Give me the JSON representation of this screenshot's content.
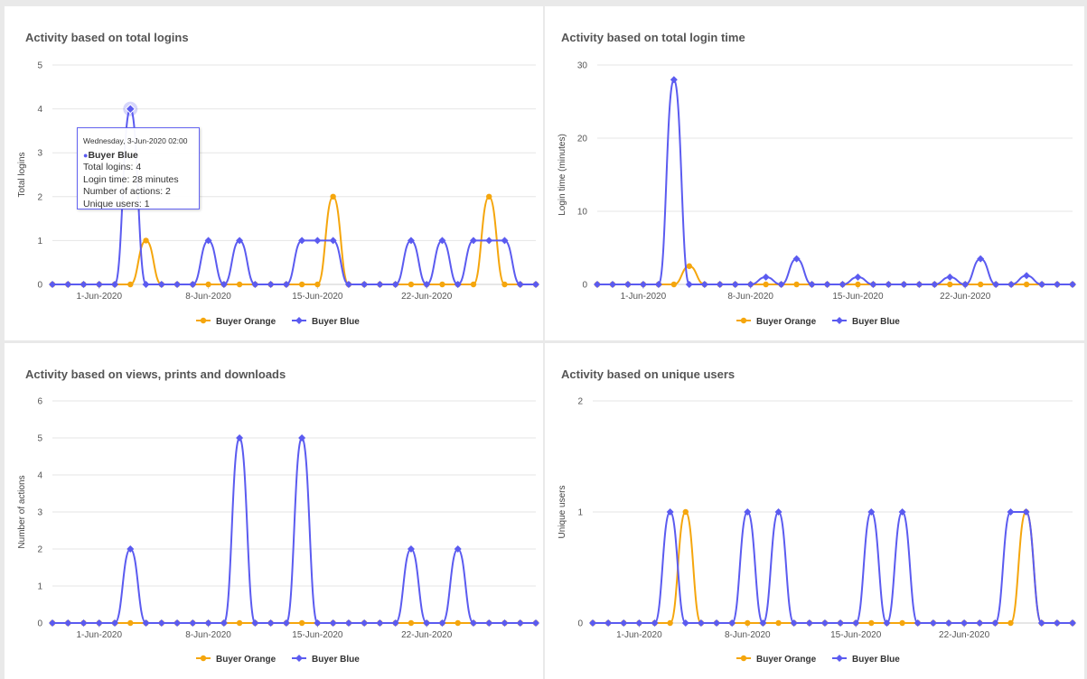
{
  "colors": {
    "orange": "#f5a60d",
    "blue": "#5b5bf0",
    "grid": "#e6e6e6",
    "axis_text": "#555555"
  },
  "legend": {
    "orange_label": "Buyer Orange",
    "blue_label": "Buyer Blue"
  },
  "chart_data": [
    {
      "type": "line",
      "title": "Activity based on total logins",
      "ylabel": "Total logins",
      "xlabel": "",
      "ylim": [
        0,
        5
      ],
      "yticks": [
        0,
        1,
        2,
        3,
        4,
        5
      ],
      "x": [
        "2020-05-29",
        "2020-05-30",
        "2020-05-31",
        "2020-06-01",
        "2020-06-02",
        "2020-06-03",
        "2020-06-04",
        "2020-06-05",
        "2020-06-06",
        "2020-06-07",
        "2020-06-08",
        "2020-06-09",
        "2020-06-10",
        "2020-06-11",
        "2020-06-12",
        "2020-06-13",
        "2020-06-14",
        "2020-06-15",
        "2020-06-16",
        "2020-06-17",
        "2020-06-18",
        "2020-06-19",
        "2020-06-20",
        "2020-06-21",
        "2020-06-22",
        "2020-06-23",
        "2020-06-24",
        "2020-06-25",
        "2020-06-26",
        "2020-06-27",
        "2020-06-28",
        "2020-06-29"
      ],
      "xtick_labels": [
        {
          "x": "2020-06-01",
          "label": "1-Jun-2020"
        },
        {
          "x": "2020-06-08",
          "label": "8-Jun-2020"
        },
        {
          "x": "2020-06-15",
          "label": "15-Jun-2020"
        },
        {
          "x": "2020-06-22",
          "label": "22-Jun-2020"
        }
      ],
      "series": [
        {
          "name": "Buyer Orange",
          "color": "#f5a60d",
          "marker": "circle",
          "values": [
            0,
            0,
            0,
            0,
            0,
            0,
            1,
            0,
            0,
            0,
            0,
            0,
            0,
            0,
            0,
            0,
            0,
            0,
            2,
            0,
            0,
            0,
            0,
            0,
            0,
            0,
            0,
            0,
            2,
            0,
            0,
            0
          ]
        },
        {
          "name": "Buyer Blue",
          "color": "#5b5bf0",
          "marker": "diamond",
          "values": [
            0,
            0,
            0,
            0,
            0,
            4,
            0,
            0,
            0,
            0,
            1,
            0,
            1,
            0,
            0,
            0,
            1,
            1,
            1,
            0,
            0,
            0,
            0,
            1,
            0,
            1,
            0,
            1,
            1,
            1,
            0,
            0
          ]
        }
      ],
      "tooltip": {
        "date": "Wednesday, 3-Jun-2020 02:00",
        "series": "Buyer Blue",
        "lines": [
          "Total logins: 4",
          "Login time: 28 minutes",
          "Number of actions: 2",
          "Unique users: 1"
        ]
      },
      "legend_position": "bottom"
    },
    {
      "type": "line",
      "title": "Activity based on total login time",
      "ylabel": "Login time (minutes)",
      "xlabel": "",
      "ylim": [
        0,
        30
      ],
      "yticks": [
        0,
        10,
        20,
        30
      ],
      "x": [
        "2020-05-29",
        "2020-05-30",
        "2020-05-31",
        "2020-06-01",
        "2020-06-02",
        "2020-06-03",
        "2020-06-04",
        "2020-06-05",
        "2020-06-06",
        "2020-06-07",
        "2020-06-08",
        "2020-06-09",
        "2020-06-10",
        "2020-06-11",
        "2020-06-12",
        "2020-06-13",
        "2020-06-14",
        "2020-06-15",
        "2020-06-16",
        "2020-06-17",
        "2020-06-18",
        "2020-06-19",
        "2020-06-20",
        "2020-06-21",
        "2020-06-22",
        "2020-06-23",
        "2020-06-24",
        "2020-06-25",
        "2020-06-26",
        "2020-06-27",
        "2020-06-28",
        "2020-06-29"
      ],
      "xtick_labels": [
        {
          "x": "2020-06-01",
          "label": "1-Jun-2020"
        },
        {
          "x": "2020-06-08",
          "label": "8-Jun-2020"
        },
        {
          "x": "2020-06-15",
          "label": "15-Jun-2020"
        },
        {
          "x": "2020-06-22",
          "label": "22-Jun-2020"
        }
      ],
      "series": [
        {
          "name": "Buyer Orange",
          "color": "#f5a60d",
          "marker": "circle",
          "values": [
            0,
            0,
            0,
            0,
            0,
            0,
            2.5,
            0,
            0,
            0,
            0,
            0,
            0,
            0,
            0,
            0,
            0,
            0,
            0,
            0,
            0,
            0,
            0,
            0,
            0,
            0,
            0,
            0,
            0,
            0,
            0,
            0
          ]
        },
        {
          "name": "Buyer Blue",
          "color": "#5b5bf0",
          "marker": "diamond",
          "values": [
            0,
            0,
            0,
            0,
            0,
            28,
            0,
            0,
            0,
            0,
            0,
            1,
            0,
            3.5,
            0,
            0,
            0,
            1,
            0,
            0,
            0,
            0,
            0,
            1,
            0,
            3.5,
            0,
            0,
            1.2,
            0,
            0,
            0
          ]
        }
      ],
      "legend_position": "bottom"
    },
    {
      "type": "line",
      "title": "Activity based on views, prints and downloads",
      "ylabel": "Number of actions",
      "xlabel": "",
      "ylim": [
        0,
        6
      ],
      "yticks": [
        0,
        1,
        2,
        3,
        4,
        5,
        6
      ],
      "x": [
        "2020-05-29",
        "2020-05-30",
        "2020-05-31",
        "2020-06-01",
        "2020-06-02",
        "2020-06-03",
        "2020-06-04",
        "2020-06-05",
        "2020-06-06",
        "2020-06-07",
        "2020-06-08",
        "2020-06-09",
        "2020-06-10",
        "2020-06-11",
        "2020-06-12",
        "2020-06-13",
        "2020-06-14",
        "2020-06-15",
        "2020-06-16",
        "2020-06-17",
        "2020-06-18",
        "2020-06-19",
        "2020-06-20",
        "2020-06-21",
        "2020-06-22",
        "2020-06-23",
        "2020-06-24",
        "2020-06-25",
        "2020-06-26",
        "2020-06-27",
        "2020-06-28",
        "2020-06-29"
      ],
      "xtick_labels": [
        {
          "x": "2020-06-01",
          "label": "1-Jun-2020"
        },
        {
          "x": "2020-06-08",
          "label": "8-Jun-2020"
        },
        {
          "x": "2020-06-15",
          "label": "15-Jun-2020"
        },
        {
          "x": "2020-06-22",
          "label": "22-Jun-2020"
        }
      ],
      "series": [
        {
          "name": "Buyer Orange",
          "color": "#f5a60d",
          "marker": "circle",
          "values": [
            0,
            0,
            0,
            0,
            0,
            0,
            0,
            0,
            0,
            0,
            0,
            0,
            0,
            0,
            0,
            0,
            0,
            0,
            0,
            0,
            0,
            0,
            0,
            0,
            0,
            0,
            0,
            0,
            0,
            0,
            0,
            0
          ]
        },
        {
          "name": "Buyer Blue",
          "color": "#5b5bf0",
          "marker": "diamond",
          "values": [
            0,
            0,
            0,
            0,
            0,
            2,
            0,
            0,
            0,
            0,
            0,
            0,
            5,
            0,
            0,
            0,
            5,
            0,
            0,
            0,
            0,
            0,
            0,
            2,
            0,
            0,
            2,
            0,
            0,
            0,
            0,
            0
          ]
        }
      ],
      "legend_position": "bottom"
    },
    {
      "type": "line",
      "title": "Activity based on unique users",
      "ylabel": "Unique users",
      "xlabel": "",
      "ylim": [
        0,
        2
      ],
      "yticks": [
        0,
        1,
        2
      ],
      "x": [
        "2020-05-29",
        "2020-05-30",
        "2020-05-31",
        "2020-06-01",
        "2020-06-02",
        "2020-06-03",
        "2020-06-04",
        "2020-06-05",
        "2020-06-06",
        "2020-06-07",
        "2020-06-08",
        "2020-06-09",
        "2020-06-10",
        "2020-06-11",
        "2020-06-12",
        "2020-06-13",
        "2020-06-14",
        "2020-06-15",
        "2020-06-16",
        "2020-06-17",
        "2020-06-18",
        "2020-06-19",
        "2020-06-20",
        "2020-06-21",
        "2020-06-22",
        "2020-06-23",
        "2020-06-24",
        "2020-06-25",
        "2020-06-26",
        "2020-06-27",
        "2020-06-28",
        "2020-06-29"
      ],
      "xtick_labels": [
        {
          "x": "2020-06-01",
          "label": "1-Jun-2020"
        },
        {
          "x": "2020-06-08",
          "label": "8-Jun-2020"
        },
        {
          "x": "2020-06-15",
          "label": "15-Jun-2020"
        },
        {
          "x": "2020-06-22",
          "label": "22-Jun-2020"
        }
      ],
      "series": [
        {
          "name": "Buyer Orange",
          "color": "#f5a60d",
          "marker": "circle",
          "values": [
            0,
            0,
            0,
            0,
            0,
            0,
            1,
            0,
            0,
            0,
            0,
            0,
            0,
            0,
            0,
            0,
            0,
            0,
            0,
            0,
            0,
            0,
            0,
            0,
            0,
            0,
            0,
            0,
            1,
            0,
            0,
            0
          ]
        },
        {
          "name": "Buyer Blue",
          "color": "#5b5bf0",
          "marker": "diamond",
          "values": [
            0,
            0,
            0,
            0,
            0,
            1,
            0,
            0,
            0,
            0,
            1,
            0,
            1,
            0,
            0,
            0,
            0,
            0,
            1,
            0,
            1,
            0,
            0,
            0,
            0,
            0,
            0,
            1,
            1,
            0,
            0,
            0
          ]
        }
      ],
      "legend_position": "bottom"
    }
  ]
}
